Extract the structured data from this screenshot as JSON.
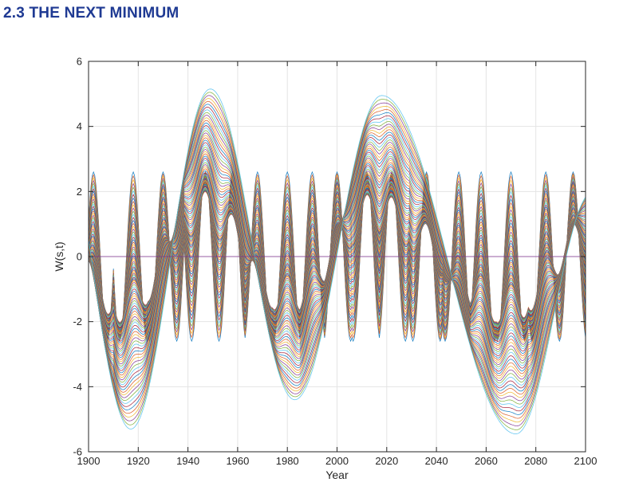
{
  "heading": "2.3 THE NEXT MINIMUM",
  "chart_data": {
    "type": "line",
    "title": "",
    "xlabel": "Year",
    "ylabel": "W(s,t)",
    "xlim": [
      1900,
      2100
    ],
    "ylim": [
      -6,
      6
    ],
    "xticks": [
      1900,
      1920,
      1940,
      1960,
      1980,
      2000,
      2020,
      2040,
      2060,
      2080,
      2100
    ],
    "yticks": [
      -6,
      -4,
      -2,
      0,
      2,
      4,
      6
    ],
    "grid": true,
    "legend": "none",
    "description_series": "family of wavelet curves W(s,t) for increasing scale s",
    "families": {
      "short_scale_oscillation": {
        "period_years": 11,
        "amplitude": 2.6,
        "peak_years": [
          1902,
          1918,
          1930,
          1947,
          1958,
          1968,
          1980,
          1990,
          2000,
          2012,
          2022,
          2036,
          2049,
          2058,
          2070,
          2084,
          2095
        ]
      },
      "long_scale_envelope": {
        "extrema": [
          [
            1914,
            -5.3
          ],
          [
            1946,
            5.15
          ],
          [
            1980,
            -4.4
          ],
          [
            2015,
            4.95
          ],
          [
            2069,
            -5.45
          ],
          [
            2100,
            2.0
          ]
        ]
      },
      "near_zero_curve": {
        "value": 0
      }
    },
    "colors": [
      "#0072bd",
      "#d95319",
      "#edb120",
      "#7e2f8e",
      "#77ac30",
      "#4dbeee",
      "#a2142f"
    ]
  }
}
